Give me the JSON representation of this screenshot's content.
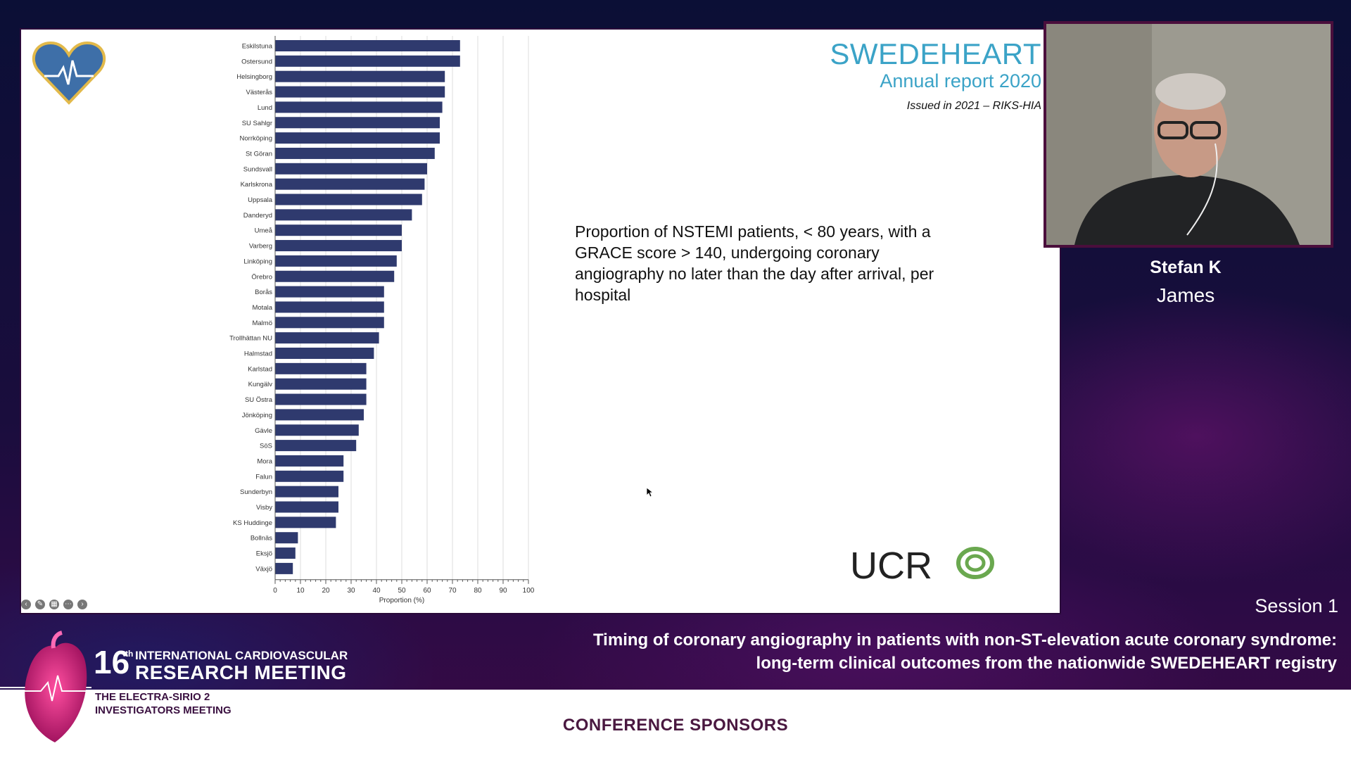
{
  "slide": {
    "brand_title": "SWEDEHEART",
    "brand_subtitle": "Annual report 2020",
    "issued": "Issued in 2021 – RIKS-HIA",
    "description": "Proportion of NSTEMI patients, < 80 years, with a GRACE score > 140, undergoing coronary angiography no later than the day after arrival, per hospital",
    "ucr_logo_text": "UCR",
    "logo_icon": "heart-ecg-icon",
    "toolbar_icons": [
      "arrow-left-icon",
      "pen-icon",
      "captions-icon",
      "more-icon",
      "arrow-right-icon"
    ]
  },
  "chart_data": {
    "type": "bar",
    "orientation": "horizontal",
    "categories": [
      "Eskilstuna",
      "Ostersund",
      "Helsingborg",
      "Västerås",
      "Lund",
      "SU Sahlgr",
      "Norrköping",
      "St Göran",
      "Sundsvall",
      "Karlskrona",
      "Uppsala",
      "Danderyd",
      "Umeå",
      "Varberg",
      "Linköping",
      "Örebro",
      "Borås",
      "Motala",
      "Malmö",
      "Trollhättan NU",
      "Halmstad",
      "Karlstad",
      "Kungälv",
      "SU Östra",
      "Jönköping",
      "Gävle",
      "SöS",
      "Mora",
      "Falun",
      "Sunderbyn",
      "Visby",
      "KS Huddinge",
      "Bollnäs",
      "Eksjö",
      "Växjö"
    ],
    "values": [
      73,
      73,
      67,
      67,
      66,
      65,
      65,
      63,
      60,
      59,
      58,
      54,
      50,
      50,
      48,
      47,
      43,
      43,
      43,
      41,
      39,
      36,
      36,
      36,
      35,
      33,
      32,
      27,
      27,
      25,
      25,
      24,
      9,
      8,
      7
    ],
    "xlabel": "Proportion (%)",
    "xlim": [
      0,
      100
    ],
    "xticks": [
      0,
      10,
      20,
      30,
      40,
      50,
      60,
      70,
      80,
      90,
      100
    ],
    "grid": true,
    "bar_color": "#2f3a6e"
  },
  "speaker": {
    "first": "Stefan K",
    "last": "James"
  },
  "session": "Session 1",
  "talk_title_line1": "Timing of coronary angiography in patients with non-ST-elevation acute coronary syndrome:",
  "talk_title_line2": "long-term clinical outcomes from the nationwide SWEDEHEART registry",
  "conference": {
    "number": "16",
    "number_suffix": "th",
    "line1": "INTERNATIONAL CARDIOVASCULAR",
    "line2": "RESEARCH MEETING",
    "line3": "THE ELECTRA-SIRIO 2",
    "line4": "INVESTIGATORS MEETING"
  },
  "sponsors_heading": "CONFERENCE SPONSORS"
}
